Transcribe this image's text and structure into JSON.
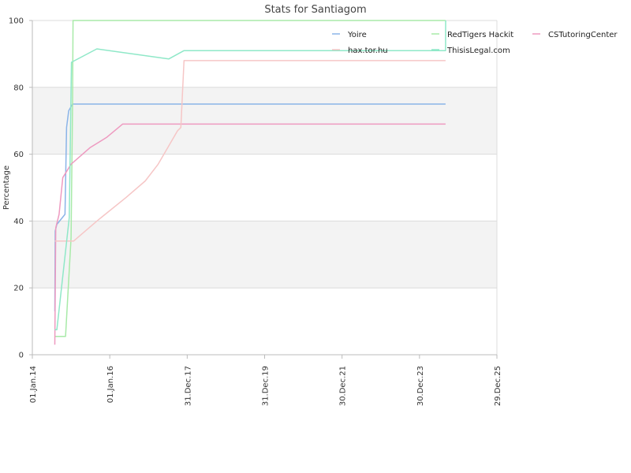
{
  "chart_data": {
    "type": "line",
    "title": "Stats for Santiagom",
    "xlabel": "",
    "ylabel": "Percentage",
    "ylim": [
      0,
      100
    ],
    "yticks": [
      0,
      20,
      40,
      60,
      80,
      100
    ],
    "xlim": [
      "2014-01-01",
      "2025-12-29"
    ],
    "xticks": [
      {
        "date": "2014-01-01",
        "label": "01.Jan.14"
      },
      {
        "date": "2016-01-01",
        "label": "01.Jan.16"
      },
      {
        "date": "2017-12-31",
        "label": "31.Dec.17"
      },
      {
        "date": "2019-12-31",
        "label": "31.Dec.19"
      },
      {
        "date": "2021-12-30",
        "label": "30.Dec.21"
      },
      {
        "date": "2023-12-30",
        "label": "30.Dec.23"
      },
      {
        "date": "2025-12-29",
        "label": "29.Dec.25"
      }
    ],
    "grid": "horizontal bands",
    "legend_position": "top-right",
    "series": [
      {
        "name": "Yoire",
        "color": "#8ab4e8",
        "points": [
          [
            "2014-08-01",
            13
          ],
          [
            "2014-08-05",
            37
          ],
          [
            "2014-08-20",
            39
          ],
          [
            "2014-11-05",
            42
          ],
          [
            "2014-11-20",
            68
          ],
          [
            "2014-12-10",
            73
          ],
          [
            "2015-01-15",
            75
          ],
          [
            "2016-06-01",
            75
          ],
          [
            "2024-09-01",
            75
          ]
        ]
      },
      {
        "name": "RedTigers Hackit",
        "color": "#a8eaa8",
        "points": [
          [
            "2014-08-01",
            5.5
          ],
          [
            "2014-11-10",
            5.5
          ],
          [
            "2015-01-01",
            35
          ],
          [
            "2015-01-15",
            75
          ],
          [
            "2015-01-20",
            100
          ],
          [
            "2024-09-01",
            100
          ]
        ]
      },
      {
        "name": "CSTutoringCenter",
        "color": "#ee9ac0",
        "points": [
          [
            "2014-08-01",
            3
          ],
          [
            "2014-08-10",
            38
          ],
          [
            "2014-09-10",
            42
          ],
          [
            "2014-10-15",
            53
          ],
          [
            "2015-01-01",
            57
          ],
          [
            "2015-07-01",
            62
          ],
          [
            "2015-12-01",
            65
          ],
          [
            "2016-05-01",
            69
          ],
          [
            "2017-10-01",
            69
          ],
          [
            "2024-09-01",
            69
          ]
        ]
      },
      {
        "name": "hax.tor.hu",
        "color": "#f6c6c6",
        "points": [
          [
            "2014-08-01",
            34
          ],
          [
            "2015-01-25",
            34
          ],
          [
            "2015-09-01",
            40
          ],
          [
            "2016-06-01",
            47
          ],
          [
            "2016-12-01",
            52
          ],
          [
            "2017-04-01",
            57
          ],
          [
            "2017-10-01",
            67
          ],
          [
            "2017-11-01",
            68
          ],
          [
            "2017-12-01",
            88
          ],
          [
            "2024-09-01",
            88
          ]
        ]
      },
      {
        "name": "ThisisLegal.com",
        "color": "#8fe8c8",
        "points": [
          [
            "2014-08-01",
            7.5
          ],
          [
            "2014-08-20",
            7.5
          ],
          [
            "2014-12-15",
            41
          ],
          [
            "2015-01-05",
            87.5
          ],
          [
            "2015-09-01",
            91.5
          ],
          [
            "2017-07-10",
            88.5
          ],
          [
            "2017-12-01",
            91
          ],
          [
            "2024-09-01",
            91
          ],
          [
            "2024-09-02",
            100
          ]
        ]
      }
    ]
  }
}
